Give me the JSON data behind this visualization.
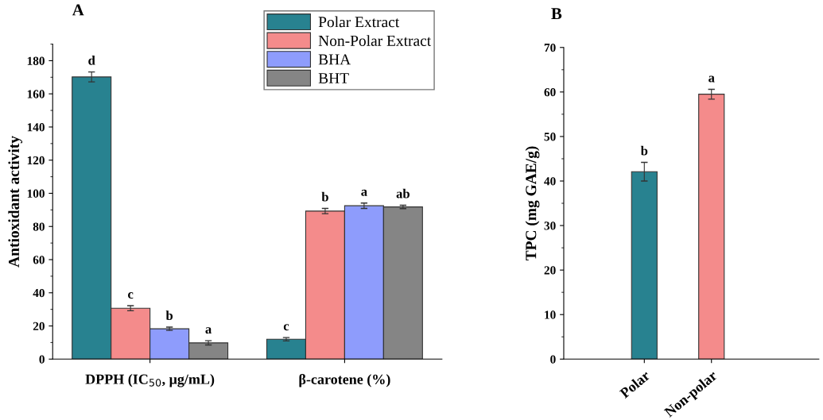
{
  "chart_data": [
    {
      "type": "bar",
      "title": "A",
      "ylabel": "Antioxidant activity",
      "categories": [
        "DPPH (IC$_{50}$, μg/mL)",
        "β-carotene (%)"
      ],
      "ylim": [
        0,
        190
      ],
      "yticks": [
        0,
        20,
        40,
        60,
        80,
        100,
        120,
        140,
        160,
        180
      ],
      "legend": "top right",
      "series": [
        {
          "name": "Polar Extract",
          "color": "#288290",
          "values": [
            170.2,
            12.0
          ],
          "errors": [
            3.0,
            1.0
          ],
          "value_labels": [
            "d",
            "c"
          ]
        },
        {
          "name": "Non-Polar Extract",
          "color": "#f48b8b",
          "values": [
            30.7,
            89.3
          ],
          "errors": [
            1.5,
            1.6
          ],
          "value_labels": [
            "c",
            "b"
          ]
        },
        {
          "name": "BHA",
          "color": "#8e9cfc",
          "values": [
            18.3,
            92.5
          ],
          "errors": [
            1.0,
            1.6
          ],
          "value_labels": [
            "b",
            "a"
          ]
        },
        {
          "name": "BHT",
          "color": "#858585",
          "values": [
            9.8,
            91.8
          ],
          "errors": [
            1.3,
            1.0
          ],
          "value_labels": [
            "a",
            "ab"
          ]
        }
      ]
    },
    {
      "type": "bar",
      "title": "B",
      "ylabel": "TPC (mg GAE/g)",
      "categories": [
        "Polar",
        "Non-polar"
      ],
      "ylim": [
        0,
        70
      ],
      "yticks": [
        0,
        10,
        20,
        30,
        40,
        50,
        60,
        70
      ],
      "values": [
        42.1,
        59.5
      ],
      "colors": [
        "#288290",
        "#f48b8b"
      ],
      "errors": [
        2.1,
        1.1
      ],
      "value_labels": [
        "b",
        "a"
      ]
    }
  ]
}
